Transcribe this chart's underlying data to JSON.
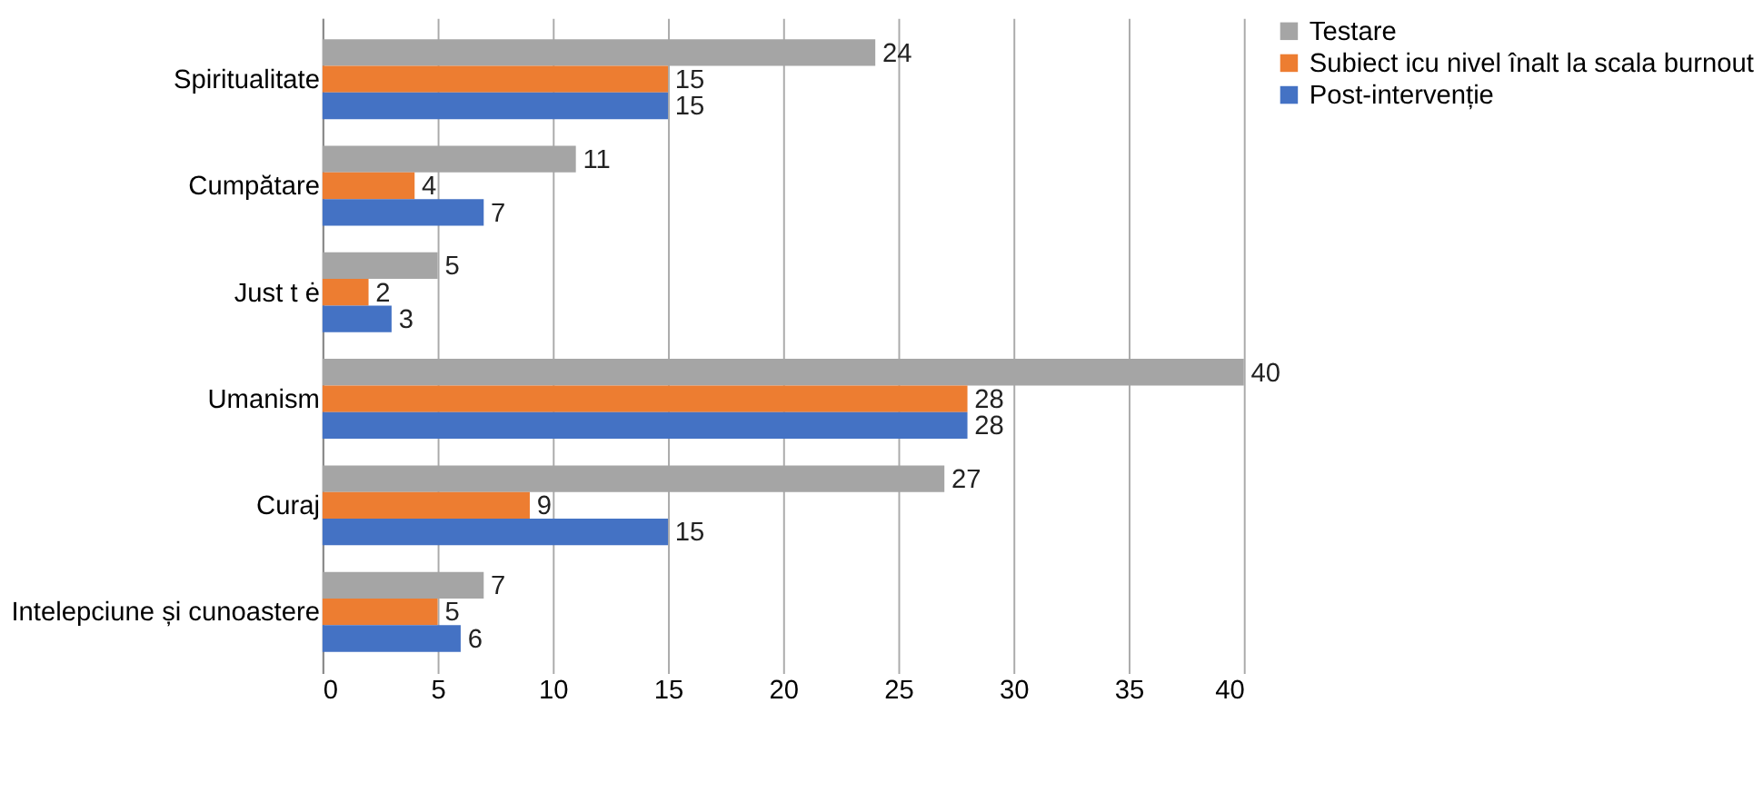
{
  "chart_data": {
    "type": "bar",
    "orientation": "horizontal",
    "categories": [
      "Spiritualitate",
      "Cumpătare",
      "Just t ė",
      "Umanism",
      "Curaj",
      "Intelepciune și cunoastere"
    ],
    "series": [
      {
        "name": "Testare",
        "color": "#a5a5a5",
        "values": [
          24,
          11,
          5,
          40,
          27,
          7
        ]
      },
      {
        "name": "Subiect icu nivel înalt la scala burnout",
        "color": "#ed7d31",
        "values": [
          15,
          4,
          2,
          28,
          9,
          5
        ]
      },
      {
        "name": "Post-intervenție",
        "color": "#4472c4",
        "values": [
          15,
          7,
          3,
          28,
          15,
          6
        ]
      }
    ],
    "xlim": [
      0,
      40
    ],
    "xticks": [
      0,
      5,
      10,
      15,
      20,
      25,
      30,
      35,
      40
    ],
    "grid": "x",
    "legend": "right",
    "data_labels": true
  }
}
